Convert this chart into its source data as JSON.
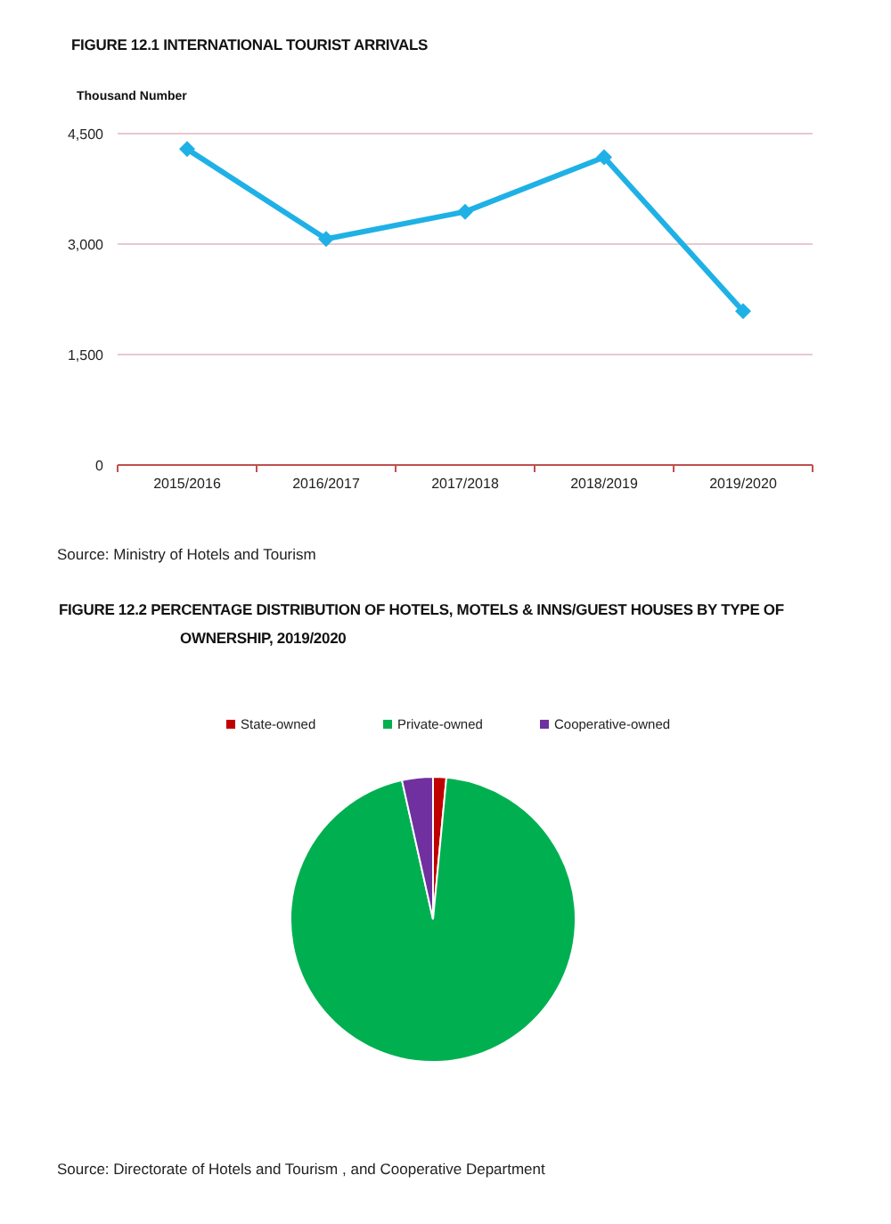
{
  "chart_data": [
    {
      "type": "line",
      "title": "FIGURE 12.1 INTERNATIONAL TOURIST ARRIVALS",
      "ylabel": "Thousand Number",
      "categories": [
        "2015/2016",
        "2016/2017",
        "2017/2018",
        "2018/2019",
        "2019/2020"
      ],
      "series": [
        {
          "color": "#1fb1e6",
          "values": [
            4290,
            3070,
            3440,
            4180,
            2090
          ]
        }
      ],
      "ylim": [
        0,
        4500
      ],
      "yticks": [
        0,
        {
          "value": 1500,
          "label": "1,500"
        },
        {
          "value": 3000,
          "label": "3,000"
        },
        {
          "value": 4500,
          "label": "4,500"
        }
      ],
      "grid": "y",
      "marker": "diamond",
      "annotations": [
        "Source: Ministry of Hotels and Tourism"
      ]
    },
    {
      "type": "pie",
      "title": "FIGURE 12.2 PERCENTAGE DISTRIBUTION OF HOTELS, MOTELS & INNS/GUEST HOUSES BY TYPE OF OWNERSHIP, 2019/2020",
      "categories": [
        "State-owned",
        "Private-owned",
        "Cooperative-owned"
      ],
      "values": [
        1.5,
        95,
        3.5
      ],
      "colors": [
        "#c00000",
        "#00b050",
        "#7030a0"
      ],
      "legend": "top",
      "annotations": [
        "Source: Directorate of Hotels and Tourism , and Cooperative Department"
      ]
    }
  ]
}
